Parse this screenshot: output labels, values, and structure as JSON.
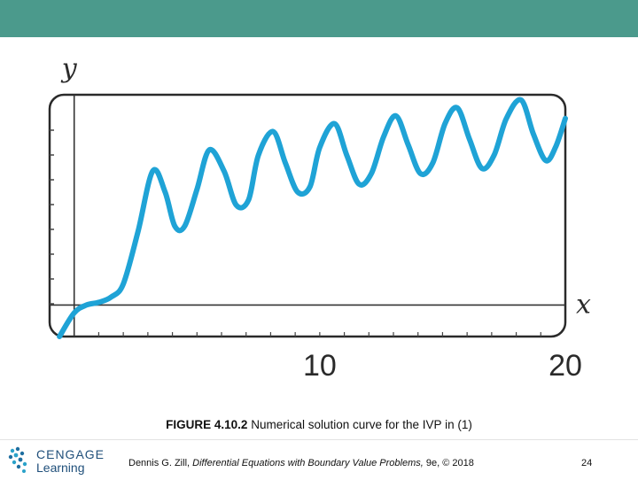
{
  "slide": {
    "caption_label": "FIGURE 4.10.2",
    "caption_text": "Numerical solution curve for the IVP in (1)",
    "credit_author": "Dennis G. Zill, ",
    "credit_book": "Differential Equations with Boundary Value Problems,",
    "credit_rest": " 9e, © 2018",
    "page_number": "24",
    "logo_line1": "CENGAGE",
    "logo_line2": "Learning",
    "accent_color": "#4b9a8c"
  },
  "chart_data": {
    "type": "line",
    "xlabel": "x",
    "ylabel": "y",
    "x_ticks": [
      "10",
      "20"
    ],
    "x_tick_values": [
      10,
      20
    ],
    "xlim": [
      -1,
      20
    ],
    "ylim": [
      -0.6,
      4.0
    ],
    "grid": false,
    "line_color": "#1fa3d6",
    "series": [
      {
        "x": [
          -0.6,
          0,
          0.5,
          1,
          1.5,
          2.0,
          2.6,
          3.2,
          3.7,
          4.1,
          4.5,
          5.0,
          5.5,
          6.1,
          6.6,
          7.1,
          7.5,
          8.1,
          8.6,
          9.1,
          9.6,
          10.0,
          10.6,
          11.1,
          11.6,
          12.1,
          12.6,
          13.1,
          13.6,
          14.1,
          14.6,
          15.1,
          15.6,
          16.1,
          16.6,
          17.1,
          17.6,
          18.2,
          18.7,
          19.2,
          19.6,
          20.0
        ],
        "y": [
          -0.6,
          -0.15,
          0.0,
          0.05,
          0.15,
          0.4,
          1.4,
          2.55,
          2.15,
          1.5,
          1.5,
          2.2,
          2.95,
          2.55,
          1.9,
          2.0,
          2.85,
          3.3,
          2.7,
          2.15,
          2.25,
          3.0,
          3.45,
          2.85,
          2.3,
          2.5,
          3.2,
          3.6,
          3.05,
          2.5,
          2.7,
          3.45,
          3.75,
          3.15,
          2.6,
          2.85,
          3.55,
          3.9,
          3.25,
          2.75,
          3.0,
          3.55
        ]
      }
    ]
  }
}
